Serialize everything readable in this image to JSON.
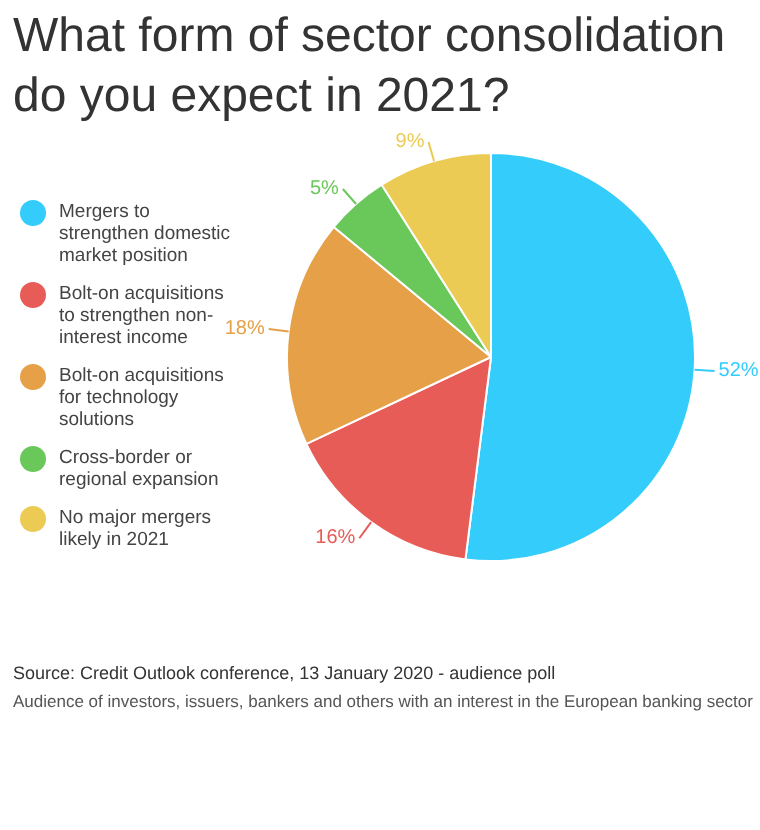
{
  "chart_data": {
    "type": "pie",
    "title": "What form of sector consolidation do you expect in 2021?",
    "categories": [
      "Mergers to strengthen domestic market position",
      "Bolt-on acquisitions to strengthen non-interest income",
      "Bolt-on acquisitions for technology solutions",
      "Cross-border or regional expansion",
      "No major mergers likely in 2021"
    ],
    "values": [
      52,
      16,
      18,
      5,
      9
    ],
    "colors": [
      "#33ccfb",
      "#e85c58",
      "#e5a048",
      "#6ac75a",
      "#eccb55"
    ],
    "value_labels": [
      "52%",
      "16%",
      "18%",
      "5%",
      "9%"
    ],
    "legend": "left",
    "annotations": [
      "Source: Credit Outlook conference, 13 January 2020 - audience poll",
      "Audience of investors, issuers, bankers and others with an interest in the European banking sector"
    ]
  }
}
